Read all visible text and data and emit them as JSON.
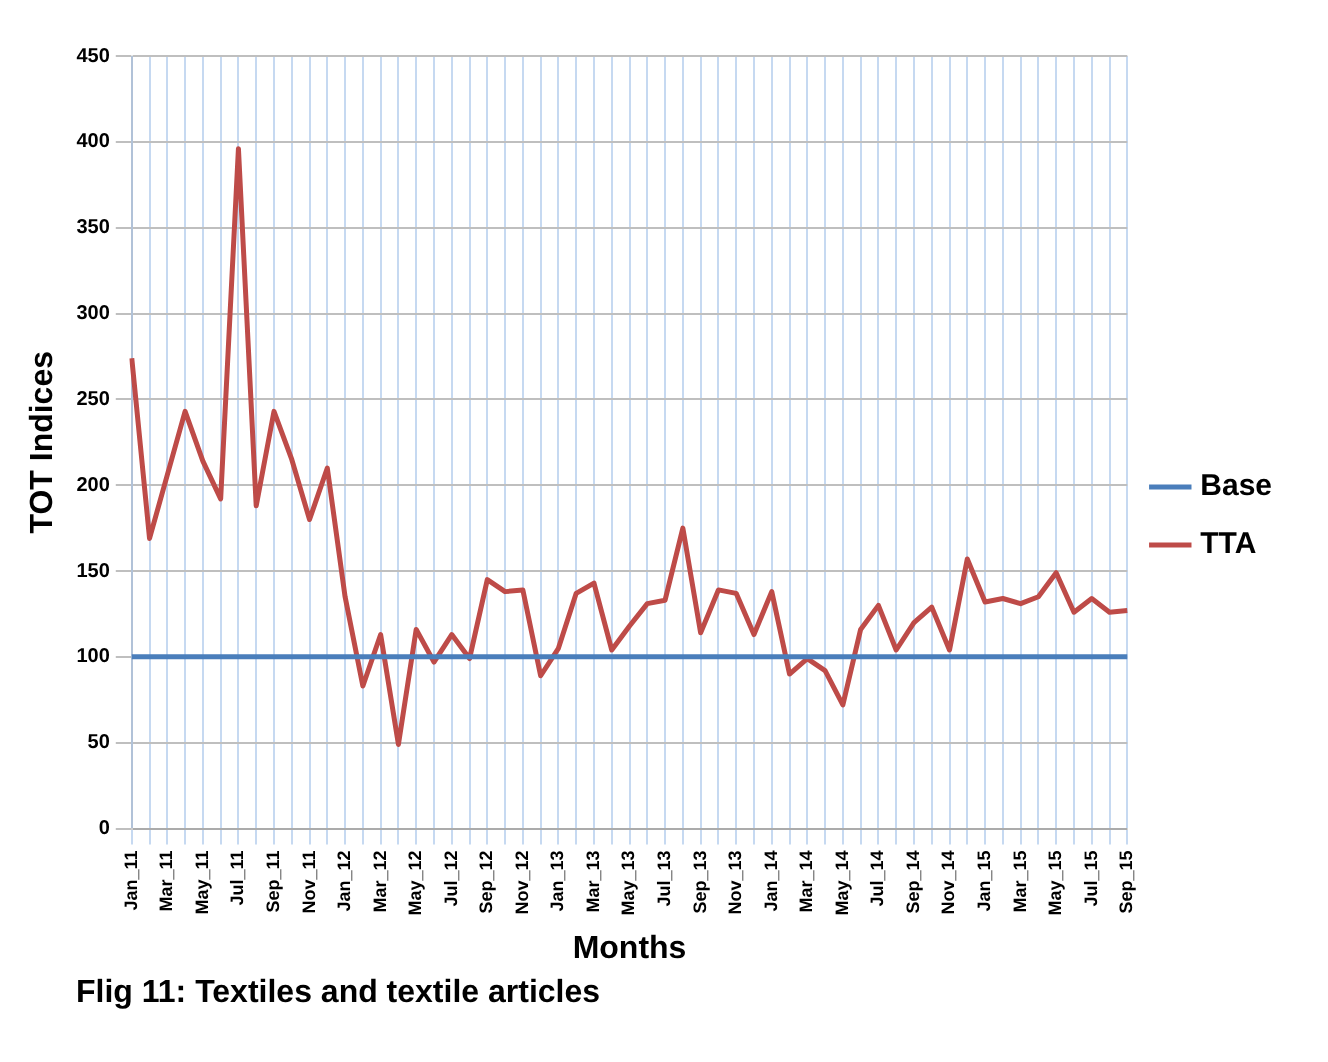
{
  "chart_data": {
    "type": "line",
    "xlabel": "Months",
    "ylabel": "TOT Indices",
    "annotations": [
      "Flig 11:  Textiles and textile articles"
    ],
    "categories": [
      "Jan_11",
      null,
      "Mar_11",
      null,
      "May_11",
      null,
      "Jul_11",
      null,
      "Sep_11",
      null,
      "Nov_11",
      null,
      "Jan_12",
      null,
      "Mar_12",
      null,
      "May_12",
      null,
      "Jul_12",
      null,
      "Sep_12",
      null,
      "Nov_12",
      null,
      "Jan_13",
      null,
      "Mar_13",
      null,
      "May_13",
      null,
      "Jul_13",
      null,
      "Sep_13",
      null,
      "Nov_13",
      null,
      "Jan_14",
      null,
      "Mar_14",
      null,
      "May_14",
      null,
      "Jul_14",
      null,
      "Sep_14",
      null,
      "Nov_14",
      null,
      "Jan_15",
      null,
      "Mar_15",
      null,
      "May_15",
      null,
      "Jul_15",
      null,
      "Sep_15"
    ],
    "series": [
      {
        "name": "Base",
        "color": "#4a7ebb",
        "values": [
          100,
          100,
          100,
          100,
          100,
          100,
          100,
          100,
          100,
          100,
          100,
          100,
          100,
          100,
          100,
          100,
          100,
          100,
          100,
          100,
          100,
          100,
          100,
          100,
          100,
          100,
          100,
          100,
          100,
          100,
          100,
          100,
          100,
          100,
          100,
          100,
          100,
          100,
          100,
          100,
          100,
          100,
          100,
          100,
          100,
          100,
          100,
          100,
          100,
          100,
          100,
          100,
          100,
          100,
          100,
          100,
          100
        ]
      },
      {
        "name": "TTA",
        "color": "#be4b48",
        "values": [
          274,
          169,
          206,
          243,
          214,
          192,
          396,
          188,
          243,
          215,
          180,
          210,
          135,
          83,
          113,
          49,
          116,
          97,
          113,
          99,
          145,
          138,
          139,
          89,
          105,
          137,
          143,
          104,
          118,
          131,
          133,
          175,
          114,
          139,
          137,
          113,
          138,
          90,
          99,
          92,
          72,
          116,
          130,
          104,
          120,
          129,
          104,
          157,
          132,
          134,
          131,
          135,
          149,
          126,
          134,
          126,
          127
        ]
      }
    ],
    "ylim": [
      0,
      450
    ],
    "yticks": [
      0,
      50,
      100,
      150,
      200,
      250,
      300,
      350,
      400,
      450
    ],
    "grid": true,
    "legend": "right",
    "marker": "none",
    "line_style": "solid"
  }
}
